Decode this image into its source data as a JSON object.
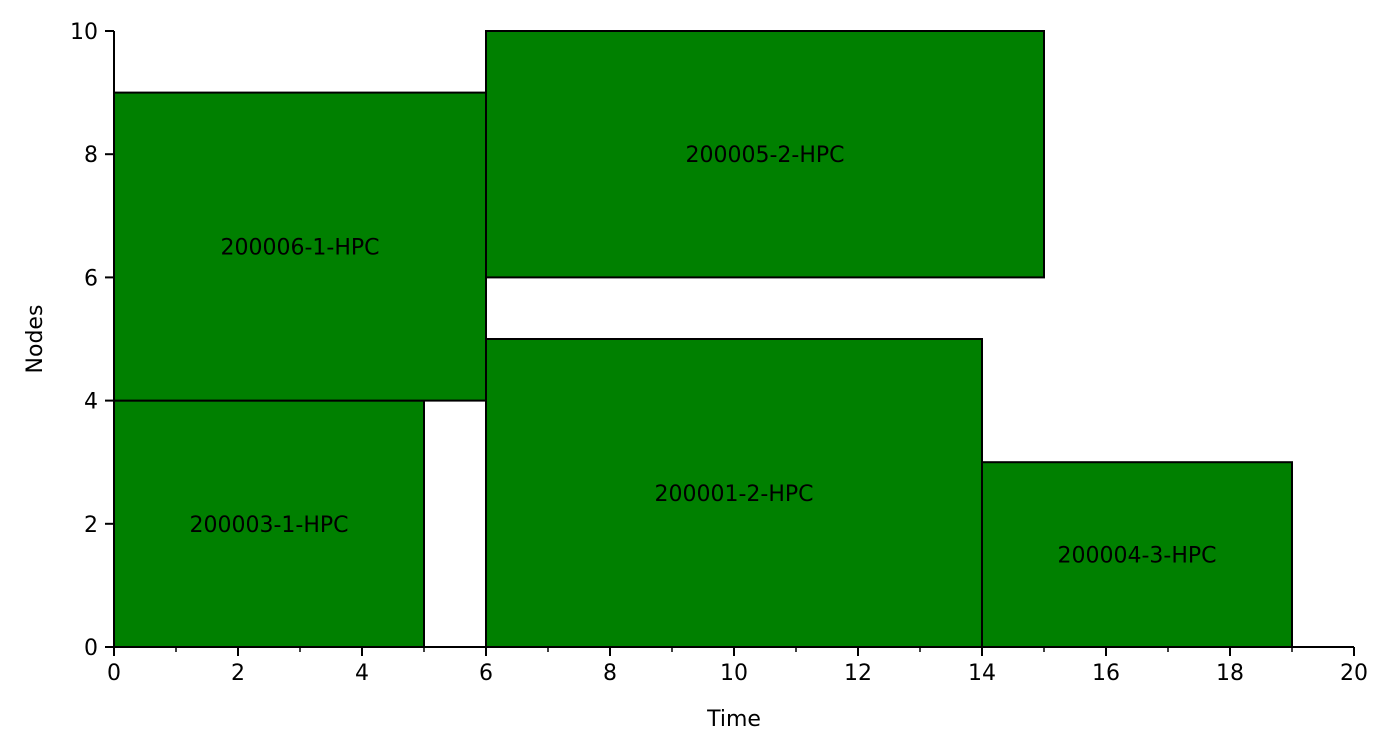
{
  "chart_data": {
    "type": "bar",
    "subtype": "gantt",
    "title": "",
    "xlabel": "Time",
    "ylabel": "Nodes",
    "xlim": [
      0,
      20
    ],
    "ylim": [
      0,
      10
    ],
    "xticks": [
      0,
      2,
      4,
      6,
      8,
      10,
      12,
      14,
      16,
      18,
      20
    ],
    "yticks": [
      0,
      2,
      4,
      6,
      8,
      10
    ],
    "grid": false,
    "bar_color": "#008000",
    "edge_color": "#000000",
    "jobs": [
      {
        "label": "200003-1-HPC",
        "start": 0,
        "end": 5,
        "node_start": 0,
        "node_end": 4
      },
      {
        "label": "200006-1-HPC",
        "start": 0,
        "end": 6,
        "node_start": 4,
        "node_end": 9
      },
      {
        "label": "200005-2-HPC",
        "start": 6,
        "end": 15,
        "node_start": 6,
        "node_end": 10
      },
      {
        "label": "200001-2-HPC",
        "start": 6,
        "end": 14,
        "node_start": 0,
        "node_end": 5
      },
      {
        "label": "200004-3-HPC",
        "start": 14,
        "end": 19,
        "node_start": 0,
        "node_end": 3
      }
    ]
  }
}
